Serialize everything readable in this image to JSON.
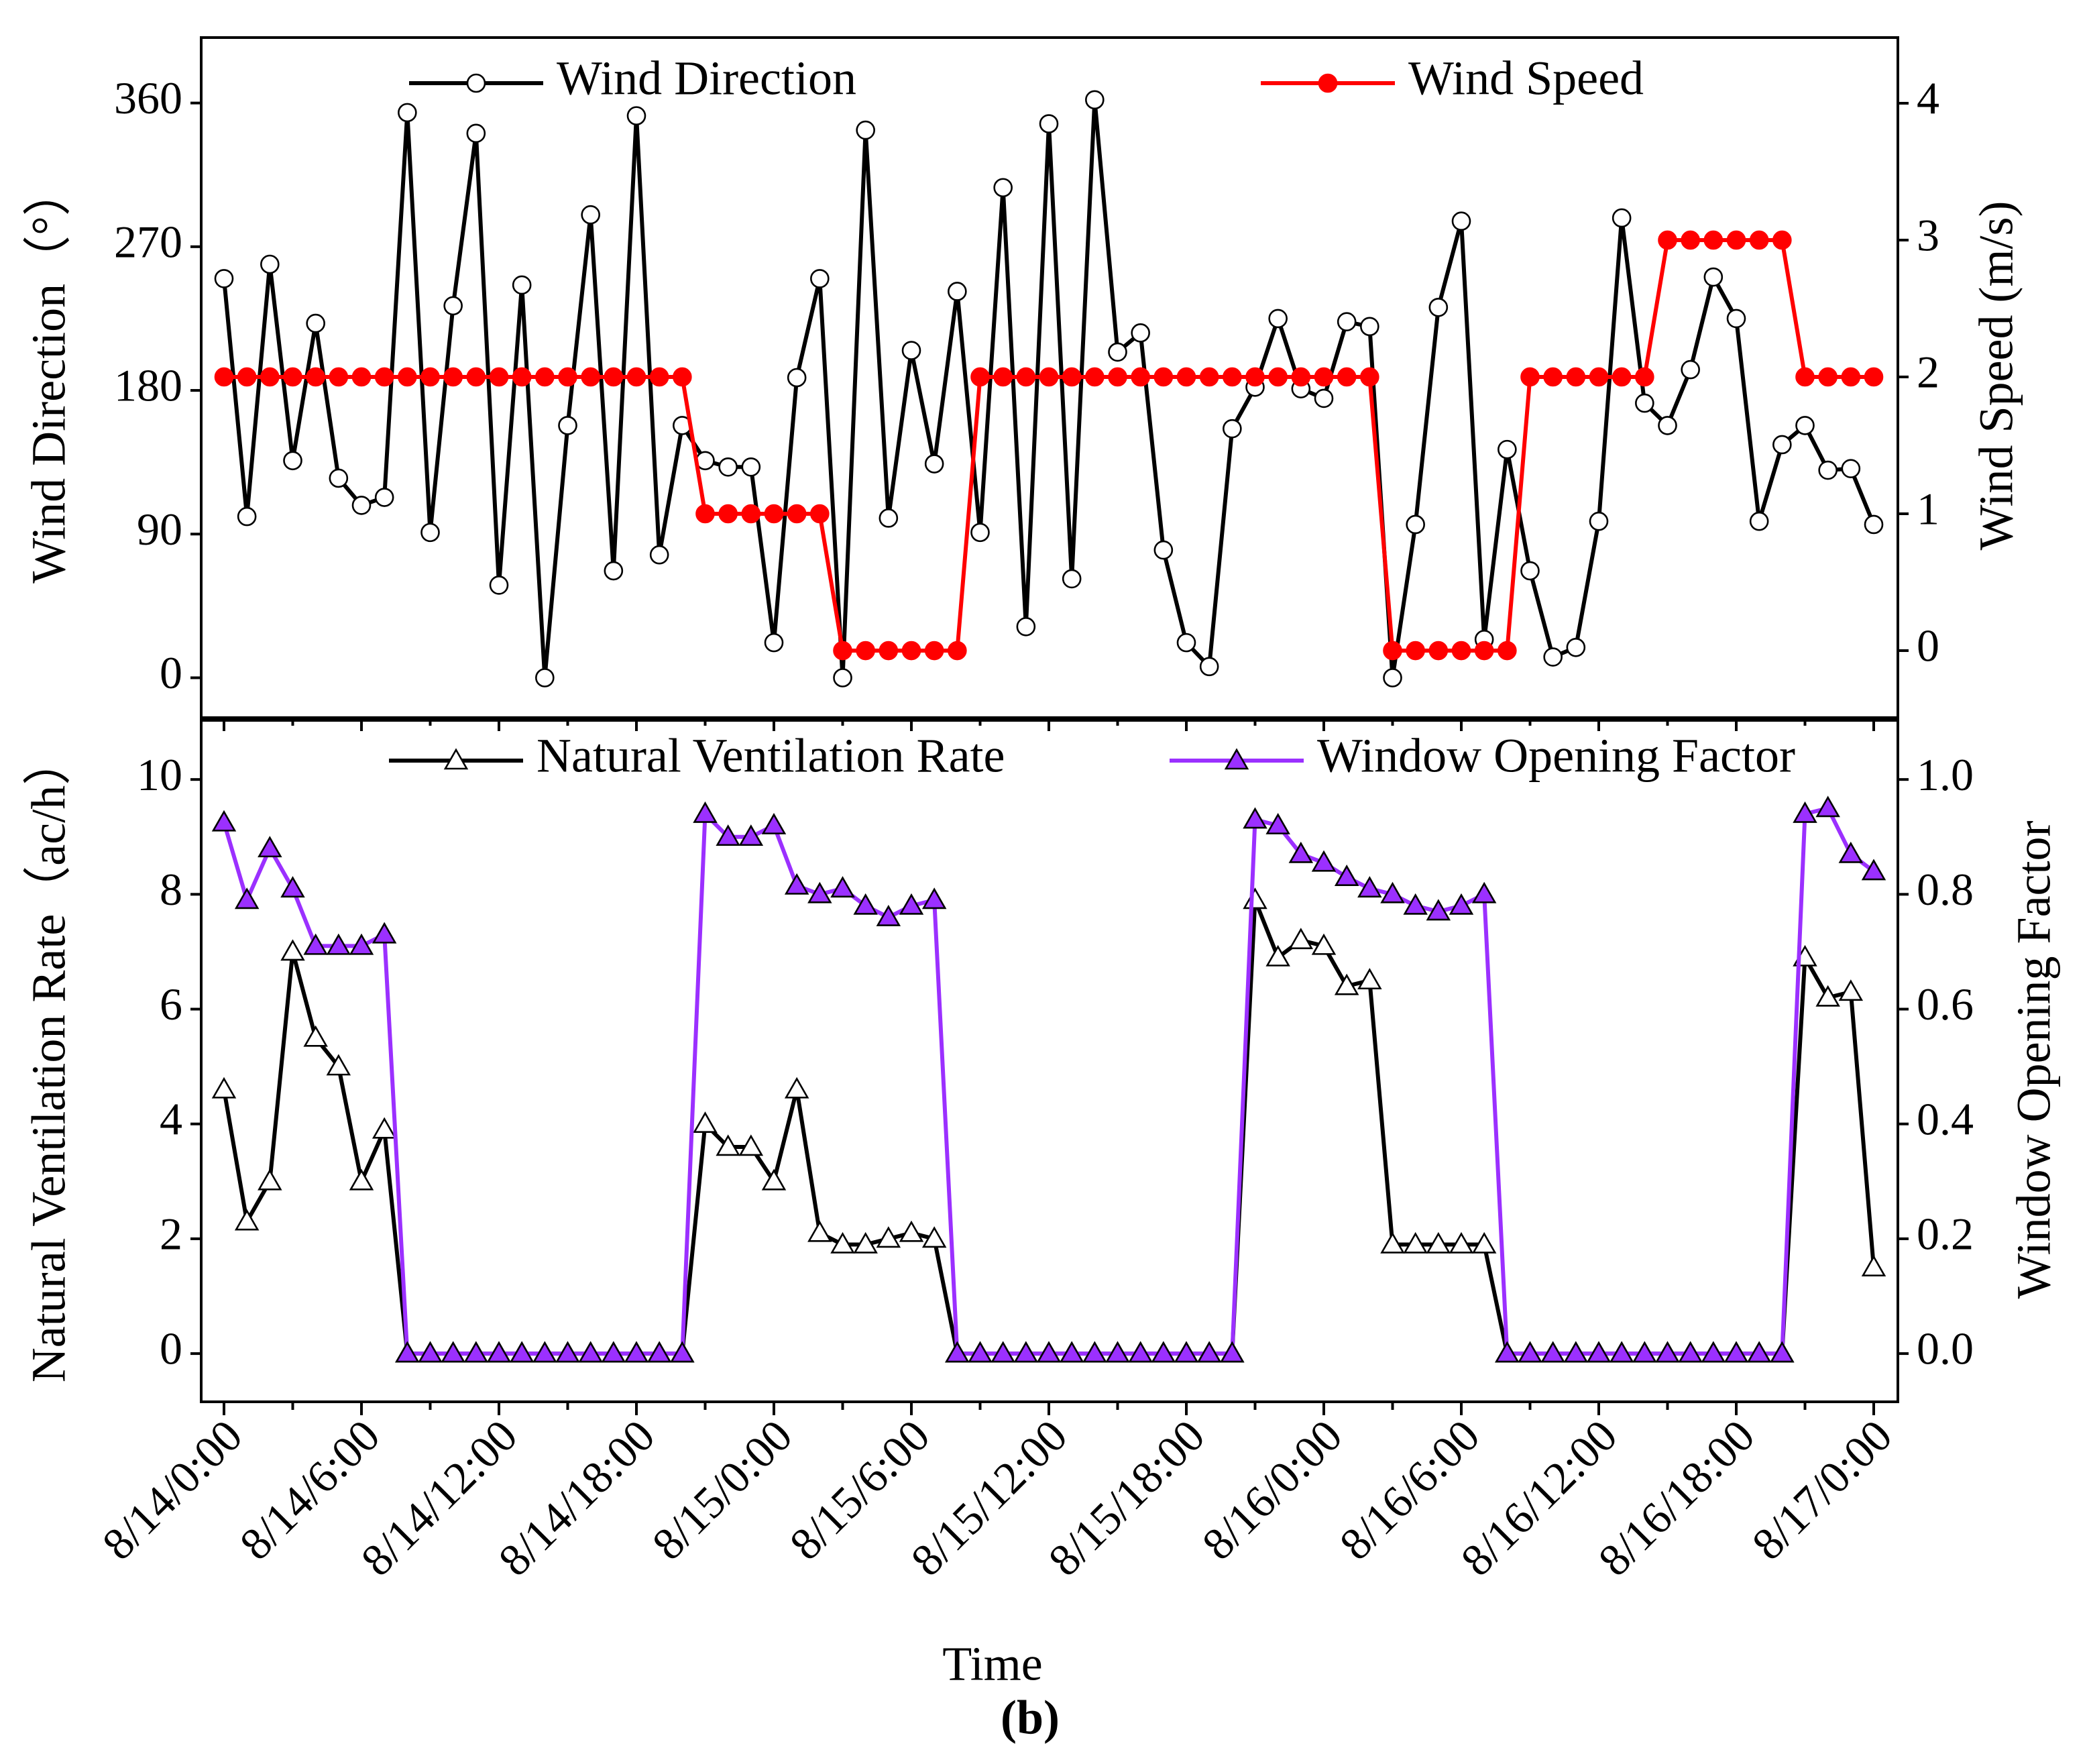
{
  "chart_data": [
    {
      "type": "line",
      "y_label": "Wind Direction（°）",
      "y2_label": "Wind Speed (m/s)",
      "ylim": [
        -25,
        401
      ],
      "yticks": [
        0,
        90,
        180,
        270,
        360
      ],
      "y2lim": [
        -0.49,
        4.48
      ],
      "y2ticks": [
        0,
        1,
        2,
        3,
        4
      ],
      "series": [
        {
          "name": "Wind Direction",
          "color": "#000000",
          "marker": "circle",
          "marker_fill": "#ffffff",
          "axis": "y",
          "values": [
            250,
            101,
            259,
            136,
            222,
            125,
            108,
            113,
            354,
            91,
            233,
            341,
            58,
            246,
            0,
            158,
            290,
            67,
            352,
            77,
            158,
            136,
            132,
            132,
            22,
            188,
            250,
            0,
            343,
            100,
            205,
            134,
            242,
            91,
            307,
            32,
            347,
            62,
            362,
            204,
            216,
            80,
            22,
            7,
            156,
            182,
            225,
            181,
            175,
            223,
            220,
            0,
            96,
            232,
            286,
            24,
            143,
            67,
            13,
            19,
            98,
            288,
            172,
            158,
            193,
            251,
            225,
            98,
            146,
            158,
            130,
            131,
            96
          ]
        },
        {
          "name": "Wind Speed",
          "color": "#ff0000",
          "marker": "circle",
          "marker_fill": "#ff0000",
          "axis": "y2",
          "values": [
            2,
            2,
            2,
            2,
            2,
            2,
            2,
            2,
            2,
            2,
            2,
            2,
            2,
            2,
            2,
            2,
            2,
            2,
            2,
            2,
            2,
            1,
            1,
            1,
            1,
            1,
            1,
            0,
            0,
            0,
            0,
            0,
            0,
            2,
            2,
            2,
            2,
            2,
            2,
            2,
            2,
            2,
            2,
            2,
            2,
            2,
            2,
            2,
            2,
            2,
            2,
            0,
            0,
            0,
            0,
            0,
            0,
            2,
            2,
            2,
            2,
            2,
            2,
            3,
            3,
            3,
            3,
            3,
            3,
            2,
            2,
            2,
            2
          ]
        }
      ]
    },
    {
      "type": "line",
      "x_label": "Time",
      "y_label": "Natural Ventilation Rate（ac/h）",
      "y2_label": "Window Opening Factor",
      "ylim": [
        -0.84,
        11.03
      ],
      "yticks": [
        0,
        2,
        4,
        6,
        8,
        10
      ],
      "y2lim": [
        -0.084,
        1.103
      ],
      "y2ticks": [
        {
          "value": 0,
          "label": "0.0"
        },
        0.2,
        0.4,
        0.6,
        0.8,
        {
          "value": 1,
          "label": "1.0"
        }
      ],
      "categories": [
        "8/14/0:00",
        null,
        null,
        null,
        null,
        null,
        "8/14/6:00",
        null,
        null,
        null,
        null,
        null,
        "8/14/12:00",
        null,
        null,
        null,
        null,
        null,
        "8/14/18:00",
        null,
        null,
        null,
        null,
        null,
        "8/15/0:00",
        null,
        null,
        null,
        null,
        null,
        "8/15/6:00",
        null,
        null,
        null,
        null,
        null,
        "8/15/12:00",
        null,
        null,
        null,
        null,
        null,
        "8/15/18:00",
        null,
        null,
        null,
        null,
        null,
        "8/16/0:00",
        null,
        null,
        null,
        null,
        null,
        "8/16/6:00",
        null,
        null,
        null,
        null,
        null,
        "8/16/12:00",
        null,
        null,
        null,
        null,
        null,
        "8/16/18:00",
        null,
        null,
        null,
        null,
        null,
        "8/17/0:00"
      ],
      "series": [
        {
          "name": "Natural Ventilation Rate",
          "color": "#000000",
          "marker": "triangle",
          "marker_fill": "#ffffff",
          "axis": "y",
          "values": [
            4.6,
            2.3,
            3.0,
            7.0,
            5.5,
            5.0,
            3.0,
            3.9,
            0,
            0,
            0,
            0,
            0,
            0,
            0,
            0,
            0,
            0,
            0,
            0,
            0,
            4.0,
            3.6,
            3.6,
            3.0,
            4.6,
            2.1,
            1.9,
            1.9,
            2.0,
            2.1,
            2.0,
            0,
            0,
            0,
            0,
            0,
            0,
            0,
            0,
            0,
            0,
            0,
            0,
            0,
            7.9,
            6.9,
            7.2,
            7.1,
            6.4,
            6.5,
            1.9,
            1.9,
            1.9,
            1.9,
            1.9,
            0,
            0,
            0,
            0,
            0,
            0,
            0,
            0,
            0,
            0,
            0,
            0,
            0,
            6.9,
            6.2,
            6.3,
            1.5
          ]
        },
        {
          "name": "Window Opening Factor",
          "color": "#9b30ff",
          "marker": "triangle",
          "marker_fill": "#9b30ff",
          "axis": "y2",
          "values": [
            0.925,
            0.79,
            0.88,
            0.81,
            0.71,
            0.71,
            0.71,
            0.73,
            0,
            0,
            0,
            0,
            0,
            0,
            0,
            0,
            0,
            0,
            0,
            0,
            0,
            0.94,
            0.9,
            0.9,
            0.92,
            0.815,
            0.8,
            0.81,
            0.78,
            0.76,
            0.78,
            0.79,
            0,
            0,
            0,
            0,
            0,
            0,
            0,
            0,
            0,
            0,
            0,
            0,
            0,
            0.93,
            0.92,
            0.87,
            0.855,
            0.83,
            0.81,
            0.8,
            0.78,
            0.77,
            0.78,
            0.8,
            0,
            0,
            0,
            0,
            0,
            0,
            0,
            0,
            0,
            0,
            0,
            0,
            0,
            0.94,
            0.95,
            0.87,
            0.84
          ]
        }
      ]
    }
  ],
  "caption": "(b)"
}
